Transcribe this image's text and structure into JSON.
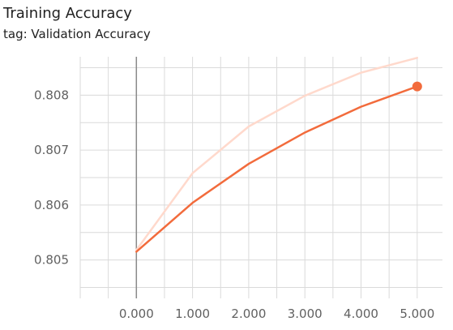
{
  "title": "Training Accuracy",
  "subtitle": "tag: Validation Accuracy",
  "chart_data": {
    "type": "line",
    "title": "Training Accuracy",
    "subtitle": "tag: Validation Accuracy",
    "xlabel": "",
    "ylabel": "",
    "xlim": [
      -1.0,
      5.45
    ],
    "ylim": [
      0.8043,
      0.8087
    ],
    "xticks": [
      0,
      1,
      2,
      3,
      4,
      5
    ],
    "xtick_labels": [
      "0.000",
      "1.000",
      "2.000",
      "3.000",
      "4.000",
      "5.000"
    ],
    "yticks": [
      0.805,
      0.806,
      0.807,
      0.808
    ],
    "ytick_labels": [
      "0.805",
      "0.806",
      "0.807",
      "0.808"
    ],
    "grid": true,
    "series": [
      {
        "role": "raw",
        "x": [
          0,
          1,
          2,
          3,
          4,
          5
        ],
        "y": [
          0.80518,
          0.80658,
          0.80743,
          0.80799,
          0.80841,
          0.80868
        ],
        "color": "#ffd9cc"
      },
      {
        "role": "smoothed",
        "x": [
          0,
          1,
          2,
          3,
          4,
          5
        ],
        "y": [
          0.80515,
          0.80604,
          0.80675,
          0.80732,
          0.80779,
          0.80816
        ],
        "color": "#f26b3c",
        "marker_last": true
      }
    ]
  }
}
